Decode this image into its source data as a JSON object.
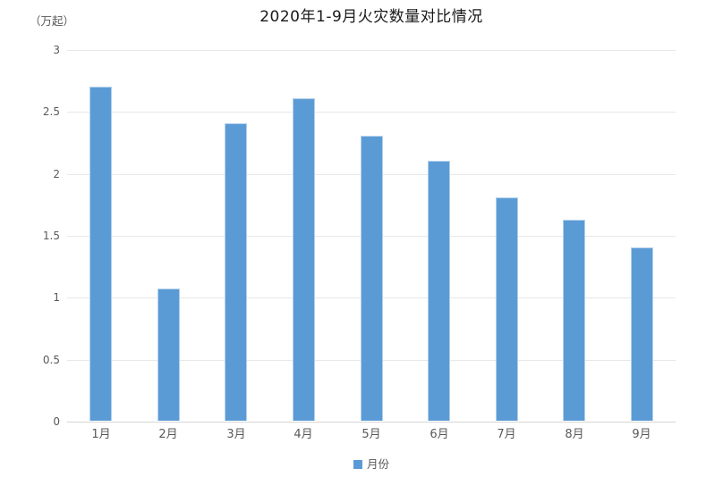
{
  "chart_data": {
    "type": "bar",
    "title": "2020年1-9月火灾数量对比情况",
    "unit_label": "（万起）",
    "categories": [
      "1月",
      "2月",
      "3月",
      "4月",
      "5月",
      "6月",
      "7月",
      "8月",
      "9月"
    ],
    "series": [
      {
        "name": "月份",
        "values": [
          2.7,
          1.07,
          2.4,
          2.6,
          2.3,
          2.1,
          1.8,
          1.62,
          1.4
        ]
      }
    ],
    "ylim": [
      0,
      3
    ],
    "yticks": [
      0,
      0.5,
      1,
      1.5,
      2,
      2.5,
      3
    ],
    "ytick_labels": [
      "0",
      "0.5",
      "1",
      "1.5",
      "2",
      "2.5",
      "3"
    ],
    "xlabel": "",
    "ylabel": "",
    "grid": true,
    "legend_position": "bottom",
    "colors": {
      "bar_fill": "#5b9bd5",
      "bar_border": "#b3d0ec",
      "gridline": "#e8e8e8",
      "axis_line": "#d6d6d6",
      "tick_text": "#595959",
      "title_text": "#1a1a1a"
    }
  }
}
